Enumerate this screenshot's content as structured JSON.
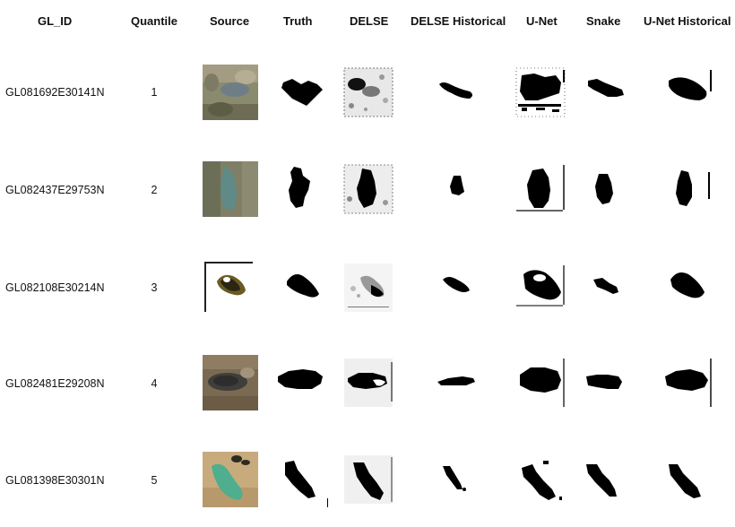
{
  "header": {
    "gl_id": "GL_ID",
    "quantile": "Quantile",
    "source": "Source",
    "truth": "Truth",
    "delse": "DELSE",
    "delse_hist": "DELSE Historical",
    "unet": "U-Net",
    "snake": "Snake",
    "unet_hist": "U-Net Historical"
  },
  "rows": [
    {
      "id": "GL081692E30141N",
      "quantile": "1"
    },
    {
      "id": "GL082437E29753N",
      "quantile": "2"
    },
    {
      "id": "GL082108E30214N",
      "quantile": "3"
    },
    {
      "id": "GL082481E29208N",
      "quantile": "4"
    },
    {
      "id": "GL081398E30301N",
      "quantile": "5"
    }
  ]
}
